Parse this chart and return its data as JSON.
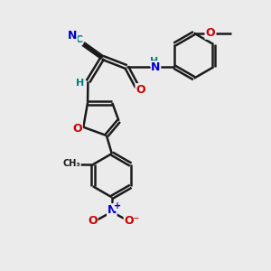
{
  "bg_color": "#ebebeb",
  "bond_color": "#1a1a1a",
  "bond_width": 1.8,
  "atom_colors": {
    "N": "#0000cc",
    "O": "#cc0000",
    "C_label": "#008080",
    "H_label": "#008080"
  },
  "layout": {
    "xlim": [
      0,
      10
    ],
    "ylim": [
      0,
      10
    ]
  }
}
